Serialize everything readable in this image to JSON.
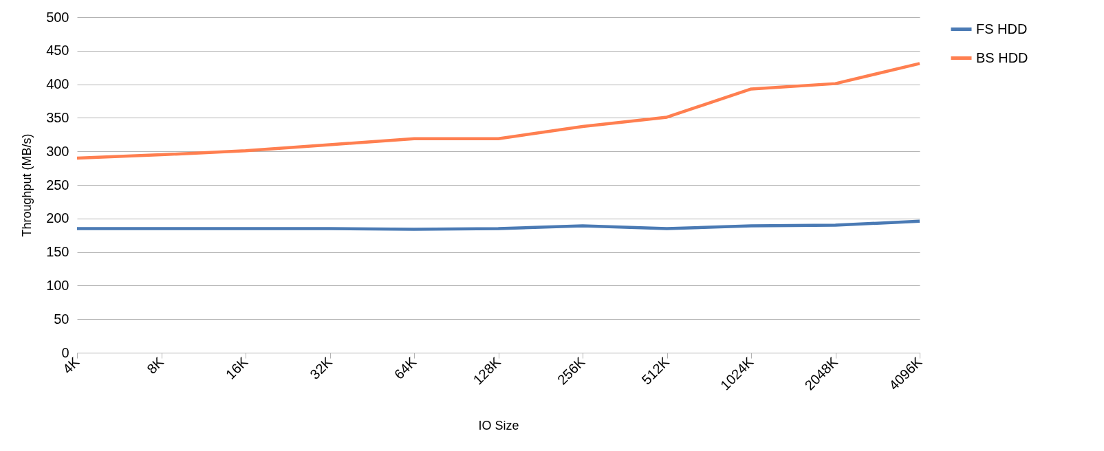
{
  "chart_data": {
    "type": "line",
    "xlabel": "IO Size",
    "ylabel": "Throughput (MB/s)",
    "categories": [
      "4K",
      "8K",
      "16K",
      "32K",
      "64K",
      "128K",
      "256K",
      "512K",
      "1024K",
      "2048K",
      "4096K"
    ],
    "series": [
      {
        "name": "FS HDD",
        "color": "#4a7ab4",
        "values": [
          185,
          185,
          185,
          185,
          184,
          185,
          189,
          185,
          189,
          190,
          196
        ]
      },
      {
        "name": "BS HDD",
        "color": "#ff7f50",
        "values": [
          290,
          295,
          301,
          310,
          319,
          319,
          337,
          351,
          393,
          401,
          431
        ]
      }
    ],
    "ylim": [
      0,
      500
    ],
    "yticks": [
      0,
      50,
      100,
      150,
      200,
      250,
      300,
      350,
      400,
      450,
      500
    ],
    "grid": "y",
    "legend": "right",
    "marker": "none",
    "line_style": "solid"
  }
}
